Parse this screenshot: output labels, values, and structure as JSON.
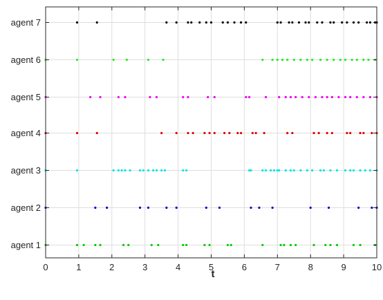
{
  "chart_data": {
    "type": "scatter",
    "title": "",
    "xlabel": "t",
    "ylabel": "",
    "xlim": [
      0,
      10
    ],
    "grid": true,
    "x_ticks": [
      0,
      1,
      2,
      3,
      4,
      5,
      6,
      7,
      8,
      9,
      10
    ],
    "categories": [
      "agent 1",
      "agent 2",
      "agent 3",
      "agent 4",
      "agent 5",
      "agent 6",
      "agent 7"
    ],
    "series": [
      {
        "color": "#00cc00",
        "values": [
          0,
          0.95,
          1.15,
          1.5,
          1.65,
          2.35,
          2.5,
          3.2,
          3.4,
          4.15,
          4.25,
          4.8,
          4.95,
          5.5,
          5.6,
          6.55,
          7.1,
          7.2,
          7.4,
          7.55,
          8.1,
          8.45,
          8.6,
          8.8,
          9.3,
          9.5,
          9.95
        ]
      },
      {
        "color": "#0000cc",
        "values": [
          0,
          1.5,
          1.85,
          2.85,
          3.1,
          3.65,
          3.95,
          4.85,
          5.25,
          6.2,
          6.45,
          6.85,
          8.0,
          8.55,
          9.45,
          9.85,
          10.0
        ]
      },
      {
        "color": "#00e5e5",
        "values": [
          0,
          0.95,
          2.05,
          2.2,
          2.3,
          2.4,
          2.55,
          2.85,
          2.95,
          3.1,
          3.25,
          3.35,
          3.5,
          3.6,
          4.15,
          4.25,
          6.15,
          6.2,
          6.55,
          6.65,
          6.8,
          6.9,
          7.0,
          7.05,
          7.25,
          7.4,
          7.5,
          7.7,
          7.9,
          8.05,
          8.3,
          8.4,
          8.6,
          8.8,
          9.05,
          9.2,
          9.3,
          9.5,
          9.65,
          9.8,
          10.0
        ]
      },
      {
        "color": "#dd0000",
        "values": [
          0,
          0.95,
          1.55,
          3.5,
          3.95,
          4.3,
          4.45,
          4.8,
          4.95,
          5.1,
          5.4,
          5.55,
          5.8,
          5.9,
          6.25,
          6.35,
          6.6,
          7.3,
          7.45,
          8.1,
          8.25,
          8.5,
          8.65,
          9.1,
          9.2,
          9.5,
          9.6,
          9.85,
          10.0
        ]
      },
      {
        "color": "#ee00ee",
        "values": [
          0,
          1.35,
          1.65,
          2.2,
          2.4,
          3.15,
          3.35,
          4.15,
          4.3,
          4.9,
          5.1,
          6.05,
          6.15,
          6.65,
          7.05,
          7.25,
          7.4,
          7.55,
          7.75,
          7.95,
          8.15,
          8.35,
          8.5,
          8.65,
          8.85,
          9.05,
          9.2,
          9.4,
          9.6,
          9.8,
          10.0
        ]
      },
      {
        "color": "#22ee22",
        "values": [
          0,
          0.95,
          2.05,
          2.45,
          3.1,
          3.55,
          6.55,
          6.85,
          7.0,
          7.15,
          7.3,
          7.5,
          7.7,
          7.9,
          8.05,
          8.3,
          8.5,
          8.7,
          8.9,
          9.05,
          9.25,
          9.4,
          9.6,
          9.75,
          9.95
        ]
      },
      {
        "color": "#000000",
        "values": [
          0.95,
          1.55,
          3.65,
          3.95,
          4.3,
          4.4,
          4.65,
          4.85,
          5.0,
          5.35,
          5.5,
          5.7,
          5.9,
          6.05,
          7.0,
          7.1,
          7.35,
          7.45,
          7.65,
          7.85,
          7.95,
          8.2,
          8.35,
          8.6,
          8.7,
          8.95,
          9.1,
          9.3,
          9.45,
          9.7,
          9.8,
          9.95,
          10.0
        ]
      }
    ]
  }
}
